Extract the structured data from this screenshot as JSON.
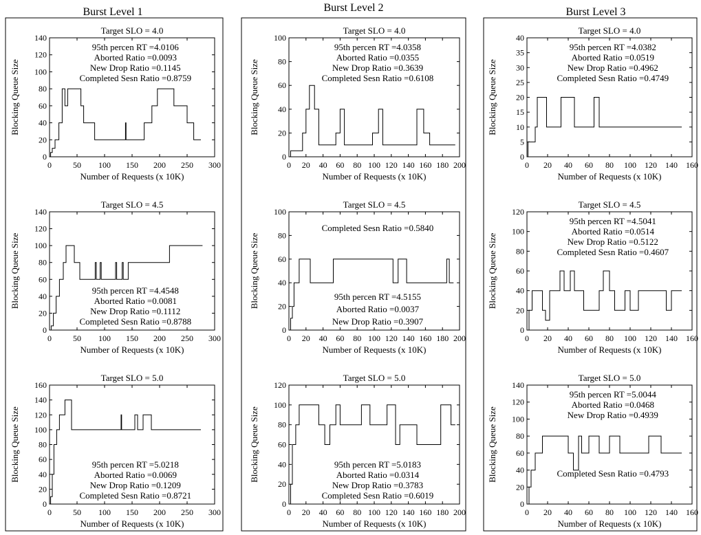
{
  "columns": [
    {
      "heading": "Burst Level 1"
    },
    {
      "heading": "Burst Level 2"
    },
    {
      "heading": "Burst Level 3"
    }
  ],
  "chart_data": [
    {
      "col": 0,
      "row": 0,
      "type": "line",
      "title": "Target SLO = 4.0",
      "xlabel": "Number of Requests (x 10K)",
      "ylabel": "Blocking Queue Size",
      "xlim": [
        0,
        300
      ],
      "ylim": [
        0,
        140
      ],
      "xticks": [
        0,
        50,
        100,
        150,
        200,
        250,
        300
      ],
      "yticks": [
        0,
        20,
        40,
        60,
        80,
        100,
        120,
        140
      ],
      "annotation_lines": [
        "95th percen RT  =4.0106",
        "Aborted Ratio  =0.0093",
        "New Drop Ratio =0.1145",
        "Completed Sesn Ratio =0.8759"
      ],
      "annotation_pos": "top",
      "series": [
        {
          "x": [
            0,
            2,
            2,
            5,
            5,
            10,
            10,
            17,
            17,
            23,
            23,
            28,
            28,
            33,
            33,
            38,
            38,
            57,
            57,
            62,
            62,
            82,
            82,
            138,
            138,
            139,
            139,
            141,
            141,
            172,
            172,
            186,
            186,
            196,
            196,
            226,
            226,
            250,
            250,
            262,
            262,
            275
          ],
          "y": [
            0,
            0,
            5,
            5,
            10,
            10,
            20,
            20,
            40,
            40,
            80,
            80,
            60,
            60,
            80,
            80,
            80,
            80,
            60,
            60,
            40,
            40,
            20,
            20,
            40,
            40,
            20,
            20,
            20,
            20,
            40,
            40,
            60,
            60,
            80,
            80,
            60,
            60,
            40,
            40,
            20,
            20
          ]
        }
      ]
    },
    {
      "col": 0,
      "row": 1,
      "type": "line",
      "title": "Target SLO = 4.5",
      "xlabel": "Number of Requests (x 10K)",
      "ylabel": "Blocking Queue Size",
      "xlim": [
        0,
        300
      ],
      "ylim": [
        0,
        140
      ],
      "xticks": [
        0,
        50,
        100,
        150,
        200,
        250,
        300
      ],
      "yticks": [
        0,
        20,
        40,
        60,
        80,
        100,
        120,
        140
      ],
      "annotation_lines": [
        "95th percen RT  =4.4548",
        "Aborted Ratio  =0.0081",
        "New Drop Ratio =0.1112",
        "Completed Sesn Ratio =0.8788"
      ],
      "annotation_pos": "bottom",
      "series": [
        {
          "x": [
            0,
            3,
            3,
            7,
            7,
            12,
            12,
            18,
            18,
            25,
            25,
            30,
            30,
            45,
            45,
            55,
            55,
            83,
            83,
            85,
            85,
            92,
            92,
            94,
            94,
            100,
            100,
            120,
            120,
            122,
            122,
            132,
            132,
            134,
            134,
            143,
            143,
            162,
            162,
            218,
            218,
            278
          ],
          "y": [
            0,
            0,
            5,
            5,
            20,
            20,
            40,
            40,
            60,
            60,
            80,
            80,
            100,
            100,
            80,
            80,
            60,
            60,
            80,
            80,
            60,
            60,
            80,
            80,
            60,
            60,
            60,
            60,
            80,
            80,
            60,
            60,
            80,
            80,
            60,
            60,
            80,
            80,
            80,
            80,
            100,
            100
          ]
        }
      ]
    },
    {
      "col": 0,
      "row": 2,
      "type": "line",
      "title": "Target SLO = 5.0",
      "xlabel": "Number of Requests (x 10K)",
      "ylabel": "Blocking Queue Size",
      "xlim": [
        0,
        300
      ],
      "ylim": [
        0,
        160
      ],
      "xticks": [
        0,
        50,
        100,
        150,
        200,
        250,
        300
      ],
      "yticks": [
        0,
        20,
        40,
        60,
        80,
        100,
        120,
        140,
        160
      ],
      "annotation_lines": [
        "95th percen RT  =5.0218",
        "Aborted Ratio  =0.0069",
        "New Drop Ratio =0.1209",
        "Completed Sesn Ratio =0.8721"
      ],
      "annotation_pos": "bottom",
      "series": [
        {
          "x": [
            0,
            2,
            2,
            5,
            5,
            8,
            8,
            13,
            13,
            18,
            18,
            28,
            28,
            40,
            40,
            85,
            85,
            130,
            130,
            131,
            131,
            155,
            155,
            160,
            160,
            170,
            170,
            185,
            185,
            275
          ],
          "y": [
            0,
            0,
            10,
            10,
            40,
            40,
            80,
            80,
            100,
            100,
            120,
            120,
            140,
            140,
            100,
            100,
            100,
            100,
            120,
            120,
            100,
            100,
            120,
            120,
            100,
            100,
            120,
            120,
            100,
            100
          ]
        }
      ]
    },
    {
      "col": 1,
      "row": 0,
      "type": "line",
      "title": "Target SLO = 4.0",
      "xlabel": "Number of Requests (x 10K)",
      "ylabel": "Blocking Queue Size",
      "xlim": [
        0,
        200
      ],
      "ylim": [
        0,
        100
      ],
      "xticks": [
        0,
        20,
        40,
        60,
        80,
        100,
        120,
        140,
        160,
        180,
        200
      ],
      "yticks": [
        0,
        20,
        40,
        60,
        80,
        100
      ],
      "annotation_lines": [
        "95th percen RT  =4.0358",
        "Aborted Ratio  =0.0355",
        "New Drop Ratio =0.3639",
        "Completed Sesn Ratio =0.6108"
      ],
      "annotation_pos": "top",
      "series": [
        {
          "x": [
            0,
            2,
            2,
            10,
            10,
            16,
            16,
            20,
            20,
            24,
            24,
            30,
            30,
            35,
            35,
            55,
            55,
            60,
            60,
            65,
            65,
            98,
            98,
            105,
            105,
            110,
            110,
            150,
            150,
            158,
            158,
            165,
            165,
            195
          ],
          "y": [
            0,
            0,
            5,
            5,
            5,
            5,
            20,
            20,
            40,
            40,
            60,
            60,
            40,
            40,
            10,
            10,
            20,
            20,
            40,
            40,
            10,
            10,
            20,
            20,
            40,
            40,
            10,
            10,
            40,
            40,
            20,
            20,
            10,
            10
          ]
        }
      ]
    },
    {
      "col": 1,
      "row": 1,
      "type": "line",
      "title": "Target SLO = 4.5",
      "xlabel": "Number of Requests (x 10K)",
      "ylabel": "Blocking Queue Size",
      "xlim": [
        0,
        200
      ],
      "ylim": [
        0,
        100
      ],
      "xticks": [
        0,
        20,
        40,
        60,
        80,
        100,
        120,
        140,
        160,
        180,
        200
      ],
      "yticks": [
        0,
        20,
        40,
        60,
        80,
        100
      ],
      "annotation_lines": [
        "Completed Sesn Ratio =0.5840",
        "95th percen RT  =4.5155",
        "Aborted Ratio  =0.0037",
        "New Drop Ratio =0.3907"
      ],
      "annotation_pos": "split",
      "series": [
        {
          "x": [
            0,
            2,
            2,
            4,
            4,
            6,
            6,
            12,
            12,
            16,
            16,
            25,
            25,
            52,
            52,
            85,
            85,
            122,
            122,
            128,
            128,
            138,
            138,
            185,
            185,
            188,
            188,
            193
          ],
          "y": [
            0,
            0,
            10,
            10,
            20,
            20,
            40,
            40,
            60,
            60,
            60,
            60,
            40,
            40,
            60,
            60,
            60,
            60,
            40,
            40,
            60,
            60,
            40,
            40,
            60,
            60,
            40,
            40
          ]
        }
      ]
    },
    {
      "col": 1,
      "row": 2,
      "type": "line",
      "title": "Target SLO = 5.0",
      "xlabel": "Number of Requests (x 10K)",
      "ylabel": "Blocking Queue Size",
      "xlim": [
        0,
        200
      ],
      "ylim": [
        0,
        120
      ],
      "xticks": [
        0,
        20,
        40,
        60,
        80,
        100,
        120,
        140,
        160,
        180,
        200
      ],
      "yticks": [
        0,
        20,
        40,
        60,
        80,
        100,
        120
      ],
      "annotation_lines": [
        "95th percen RT  =5.0183",
        "Aborted Ratio  =0.0314",
        "New Drop Ratio =0.3783",
        "Completed Sesn Ratio =0.6019"
      ],
      "annotation_pos": "bottom",
      "series": [
        {
          "x": [
            0,
            2,
            2,
            4,
            4,
            8,
            8,
            12,
            12,
            35,
            35,
            38,
            38,
            42,
            42,
            48,
            48,
            55,
            55,
            60,
            60,
            65,
            65,
            85,
            85,
            95,
            95,
            115,
            115,
            125,
            125,
            130,
            130,
            142,
            142,
            150,
            150,
            178,
            178,
            190,
            190,
            195
          ],
          "y": [
            0,
            0,
            20,
            20,
            60,
            60,
            80,
            80,
            100,
            100,
            80,
            80,
            80,
            80,
            60,
            60,
            80,
            80,
            100,
            100,
            80,
            80,
            80,
            80,
            100,
            100,
            80,
            80,
            100,
            100,
            60,
            60,
            80,
            80,
            80,
            80,
            60,
            60,
            100,
            100,
            80,
            80
          ]
        }
      ]
    },
    {
      "col": 2,
      "row": 0,
      "type": "line",
      "title": "Target SLO = 4.0",
      "xlabel": "Number of Requests (x 10K)",
      "ylabel": "Blocking Queue Size",
      "xlim": [
        0,
        160
      ],
      "ylim": [
        0,
        40
      ],
      "xticks": [
        0,
        20,
        40,
        60,
        80,
        100,
        120,
        140,
        160
      ],
      "yticks": [
        0,
        5,
        10,
        15,
        20,
        25,
        30,
        35,
        40
      ],
      "annotation_lines": [
        "95th percen RT  =4.0382",
        "Aborted Ratio  =0.0519",
        "New Drop Ratio =0.4962",
        "Completed Sesn Ratio =0.4749"
      ],
      "annotation_pos": "top",
      "series": [
        {
          "x": [
            0,
            1,
            1,
            5,
            5,
            8,
            8,
            10,
            10,
            13,
            13,
            19,
            19,
            33,
            33,
            46,
            46,
            50,
            50,
            65,
            65,
            70,
            70,
            150
          ],
          "y": [
            0,
            0,
            5,
            5,
            5,
            5,
            10,
            10,
            20,
            20,
            20,
            20,
            10,
            10,
            20,
            20,
            10,
            10,
            10,
            10,
            20,
            20,
            10,
            10
          ]
        }
      ]
    },
    {
      "col": 2,
      "row": 1,
      "type": "line",
      "title": "Target SLO = 4.5",
      "xlabel": "Number of Requests (x 10K)",
      "ylabel": "Blocking Queue Size",
      "xlim": [
        0,
        160
      ],
      "ylim": [
        0,
        120
      ],
      "xticks": [
        0,
        20,
        40,
        60,
        80,
        100,
        120,
        140,
        160
      ],
      "yticks": [
        0,
        20,
        40,
        60,
        80,
        100,
        120
      ],
      "annotation_lines": [
        "95th percen RT  =4.5041",
        "Aborted Ratio  =0.0514",
        "New Drop Ratio =0.5122",
        "Completed Sesn Ratio =0.4607"
      ],
      "annotation_pos": "top",
      "series": [
        {
          "x": [
            0,
            2,
            2,
            5,
            5,
            15,
            15,
            18,
            18,
            22,
            22,
            32,
            32,
            36,
            36,
            42,
            42,
            46,
            46,
            55,
            55,
            70,
            70,
            74,
            74,
            80,
            80,
            85,
            85,
            95,
            95,
            100,
            100,
            108,
            108,
            115,
            115,
            135,
            135,
            140,
            140,
            150
          ],
          "y": [
            0,
            0,
            20,
            20,
            40,
            40,
            20,
            20,
            10,
            10,
            40,
            40,
            60,
            60,
            40,
            40,
            60,
            60,
            40,
            40,
            20,
            20,
            40,
            40,
            60,
            60,
            40,
            40,
            20,
            20,
            40,
            40,
            20,
            20,
            40,
            40,
            40,
            40,
            20,
            20,
            40,
            40
          ]
        }
      ]
    },
    {
      "col": 2,
      "row": 2,
      "type": "line",
      "title": "Target SLO = 5.0",
      "xlabel": "Number of Requests (x 10K)",
      "ylabel": "Blocking Queue Size",
      "xlim": [
        0,
        160
      ],
      "ylim": [
        0,
        140
      ],
      "xticks": [
        0,
        20,
        40,
        60,
        80,
        100,
        120,
        140,
        160
      ],
      "yticks": [
        0,
        20,
        40,
        60,
        80,
        100,
        120,
        140
      ],
      "annotation_lines": [
        "95th percen RT  =5.0044",
        "Aborted Ratio  =0.0468",
        "New Drop Ratio =0.4939",
        "Completed Sesn Ratio =0.4793"
      ],
      "annotation_pos": "split-low",
      "series": [
        {
          "x": [
            0,
            2,
            2,
            4,
            4,
            8,
            8,
            15,
            15,
            40,
            40,
            45,
            45,
            50,
            50,
            53,
            53,
            60,
            60,
            70,
            70,
            80,
            80,
            90,
            90,
            118,
            118,
            130,
            130,
            150
          ],
          "y": [
            0,
            0,
            20,
            20,
            40,
            40,
            60,
            60,
            80,
            80,
            60,
            60,
            40,
            40,
            80,
            80,
            60,
            60,
            80,
            80,
            60,
            60,
            80,
            80,
            60,
            60,
            80,
            80,
            60,
            60
          ]
        }
      ]
    }
  ]
}
